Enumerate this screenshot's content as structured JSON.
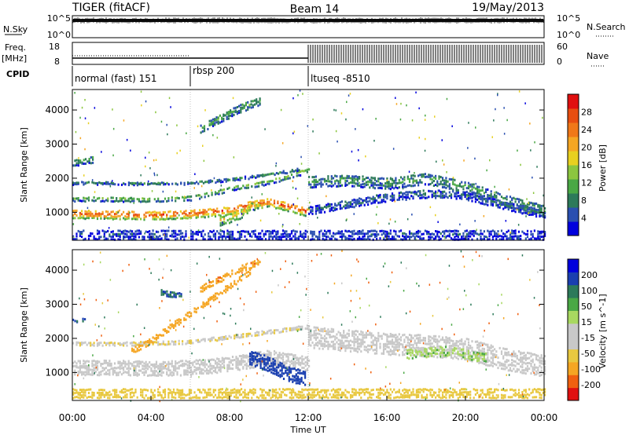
{
  "header": {
    "radar": "TIGER (fitACF)",
    "beam": "Beam 14",
    "date": "19/May/2013"
  },
  "panels": {
    "nsky_label": "N.Sky",
    "nsearch_label": "N.Search",
    "freq_label": "Freq.",
    "freq_unit": "[MHz]",
    "nave_label": "Nave",
    "cpid_label": "CPID",
    "nsky_ticks": [
      "10^5",
      "10^0"
    ],
    "nsearch_ticks": [
      "10^5",
      "10^0"
    ],
    "freq_ticks": [
      "18",
      "8"
    ],
    "nave_ticks": [
      "60",
      "0"
    ],
    "cpid_segments": [
      {
        "label": "normal (fast) 151",
        "start": 0,
        "end": 6
      },
      {
        "label": "rbsp 200",
        "start": 6,
        "end": 12
      },
      {
        "label": "ltuseq -8510",
        "start": 12,
        "end": 24
      }
    ]
  },
  "axes": {
    "ylabel": "Slant Range [km]",
    "yticks": [
      "4000",
      "3000",
      "2000",
      "1000"
    ],
    "xlabel": "Time UT",
    "xticks": [
      "00:00",
      "04:00",
      "08:00",
      "12:00",
      "16:00",
      "20:00",
      "00:00"
    ]
  },
  "colorbars": {
    "power_label": "Power [dB]",
    "power_ticks": [
      "28",
      "24",
      "20",
      "16",
      "12",
      "8",
      "4"
    ],
    "power_colors": [
      "#0000dd",
      "#2a4fb0",
      "#2d7a5a",
      "#4aa845",
      "#8cc63f",
      "#e8d020",
      "#f5a623",
      "#f07818",
      "#e84e10",
      "#e01010"
    ],
    "velocity_label": "Velocity [m s^-1]",
    "velocity_ticks": [
      "200",
      "100",
      "50",
      "15",
      "-15",
      "-50",
      "-100",
      "-200"
    ],
    "velocity_colors": [
      "#e01010",
      "#f06010",
      "#f5a623",
      "#e8c840",
      "#c8c8c8",
      "#c8c8c8",
      "#a8d860",
      "#4aa845",
      "#2d7a5a",
      "#1a3fb0",
      "#0000dd"
    ]
  },
  "chart_data": [
    {
      "type": "heatmap",
      "name": "power",
      "xlim": [
        0,
        24
      ],
      "ylim": [
        180,
        4600
      ],
      "features": [
        {
          "kind": "band",
          "t": [
            0,
            2,
            4,
            6,
            7,
            8,
            9,
            10,
            11,
            12
          ],
          "r": [
            1000,
            980,
            960,
            1000,
            1050,
            1100,
            1250,
            1350,
            1200,
            1050
          ],
          "width": 260,
          "level": 26
        },
        {
          "kind": "band",
          "t": [
            0,
            2,
            4,
            6,
            7,
            8,
            9,
            10,
            11,
            12
          ],
          "r": [
            1450,
            1450,
            1420,
            1480,
            1600,
            1750,
            1850,
            1950,
            2100,
            2300
          ],
          "width": 160,
          "level": 12
        },
        {
          "kind": "band",
          "t": [
            0,
            2,
            4,
            6,
            8,
            10,
            11.5
          ],
          "r": [
            1900,
            1900,
            1880,
            1900,
            2000,
            2150,
            2300
          ],
          "width": 80,
          "level": 8
        },
        {
          "kind": "band",
          "t": [
            6.5,
            7.5,
            8.5,
            9.5
          ],
          "r": [
            3500,
            3800,
            4100,
            4300
          ],
          "width": 250,
          "level": 10
        },
        {
          "kind": "band",
          "t": [
            0,
            1
          ],
          "r": [
            2500,
            2600
          ],
          "width": 200,
          "level": 10
        },
        {
          "kind": "band",
          "t": [
            7.5,
            8.5,
            9,
            9.5
          ],
          "r": [
            800,
            1000,
            1200,
            1300
          ],
          "width": 300,
          "level": 18
        },
        {
          "kind": "band",
          "t": [
            12,
            14,
            16,
            18,
            20,
            22,
            24
          ],
          "r": [
            1950,
            2000,
            1900,
            2050,
            1800,
            1400,
            1100
          ],
          "width": 350,
          "level": 9
        },
        {
          "kind": "band",
          "t": [
            12,
            14,
            16,
            18,
            20,
            22,
            24
          ],
          "r": [
            1100,
            1300,
            1500,
            1600,
            1550,
            1250,
            1000
          ],
          "width": 250,
          "level": 6
        },
        {
          "kind": "band",
          "t": [
            0,
            24
          ],
          "r": [
            400,
            400
          ],
          "width": 300,
          "level": 4
        }
      ]
    },
    {
      "type": "heatmap",
      "name": "velocity",
      "xlim": [
        0,
        24
      ],
      "ylim": [
        180,
        4600
      ],
      "features": [
        {
          "kind": "band",
          "t": [
            0,
            2,
            4,
            6,
            7,
            8,
            9,
            10,
            11,
            12
          ],
          "r": [
            1200,
            1200,
            1180,
            1200,
            1250,
            1300,
            1400,
            1500,
            1400,
            1300
          ],
          "width": 450,
          "value": 0
        },
        {
          "kind": "band",
          "t": [
            0,
            3,
            6,
            8,
            10,
            12
          ],
          "r": [
            1900,
            1900,
            1950,
            2100,
            2250,
            2400
          ],
          "width": 120,
          "value": -10
        },
        {
          "kind": "band",
          "t": [
            3,
            4,
            5,
            6,
            7,
            8,
            9
          ],
          "r": [
            1700,
            2000,
            2400,
            2800,
            3200,
            3600,
            4000
          ],
          "width": 200,
          "value": -70
        },
        {
          "kind": "band",
          "t": [
            6.5,
            7.5,
            8.5,
            9.5
          ],
          "r": [
            3500,
            3800,
            4100,
            4300
          ],
          "width": 200,
          "value": -90
        },
        {
          "kind": "band",
          "t": [
            9,
            10,
            11,
            11.8
          ],
          "r": [
            1500,
            1300,
            1000,
            900
          ],
          "width": 450,
          "value": 220
        },
        {
          "kind": "band",
          "t": [
            4.5,
            5.5
          ],
          "r": [
            3400,
            3300
          ],
          "width": 180,
          "value": 200
        },
        {
          "kind": "band",
          "t": [
            0,
            0.6
          ],
          "r": [
            2600,
            2550
          ],
          "width": 180,
          "value": 200
        },
        {
          "kind": "band",
          "t": [
            12,
            14,
            16,
            18,
            20,
            22,
            24
          ],
          "r": [
            2100,
            2000,
            1900,
            1850,
            1750,
            1450,
            1250
          ],
          "width": 650,
          "value": 0
        },
        {
          "kind": "band",
          "t": [
            17,
            19,
            21
          ],
          "r": [
            1600,
            1700,
            1500
          ],
          "width": 300,
          "value": 40
        },
        {
          "kind": "band",
          "t": [
            0,
            24
          ],
          "r": [
            450,
            450
          ],
          "width": 300,
          "value": -30
        }
      ]
    }
  ]
}
